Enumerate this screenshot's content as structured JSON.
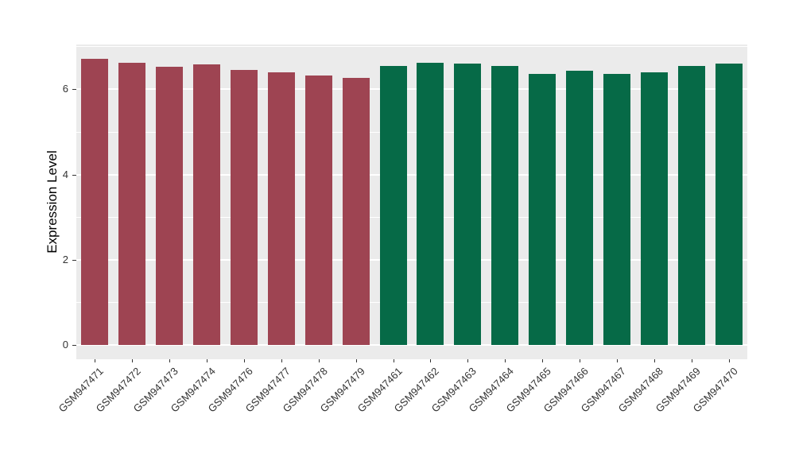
{
  "chart_data": {
    "type": "bar",
    "title": "",
    "ylabel": "Expression Level",
    "xlabel": "",
    "y_ticks": [
      0,
      2,
      4,
      6
    ],
    "ylim": [
      0,
      7.05
    ],
    "grid": "on",
    "legend": "none",
    "panel_background": "#EBEBEB",
    "gridline_color": "#FFFFFF",
    "tick_mark_color": "#333333",
    "tick_label_color": "#333333",
    "axis_title_color": "#000000",
    "group_colors": {
      "maroon": "#9E4452",
      "green": "#066A47"
    },
    "categories": [
      "GSM947471",
      "GSM947472",
      "GSM947473",
      "GSM947474",
      "GSM947476",
      "GSM947477",
      "GSM947478",
      "GSM947479",
      "GSM947461",
      "GSM947462",
      "GSM947463",
      "GSM947464",
      "GSM947465",
      "GSM947466",
      "GSM947467",
      "GSM947468",
      "GSM947469",
      "GSM947470"
    ],
    "bars": [
      {
        "label": "GSM947471",
        "value": 6.71,
        "group": "maroon"
      },
      {
        "label": "GSM947472",
        "value": 6.62,
        "group": "maroon"
      },
      {
        "label": "GSM947473",
        "value": 6.53,
        "group": "maroon"
      },
      {
        "label": "GSM947474",
        "value": 6.59,
        "group": "maroon"
      },
      {
        "label": "GSM947476",
        "value": 6.46,
        "group": "maroon"
      },
      {
        "label": "GSM947477",
        "value": 6.4,
        "group": "maroon"
      },
      {
        "label": "GSM947478",
        "value": 6.32,
        "group": "maroon"
      },
      {
        "label": "GSM947479",
        "value": 6.26,
        "group": "maroon"
      },
      {
        "label": "GSM947461",
        "value": 6.55,
        "group": "green"
      },
      {
        "label": "GSM947462",
        "value": 6.62,
        "group": "green"
      },
      {
        "label": "GSM947463",
        "value": 6.61,
        "group": "green"
      },
      {
        "label": "GSM947464",
        "value": 6.54,
        "group": "green"
      },
      {
        "label": "GSM947465",
        "value": 6.37,
        "group": "green"
      },
      {
        "label": "GSM947466",
        "value": 6.44,
        "group": "green"
      },
      {
        "label": "GSM947467",
        "value": 6.37,
        "group": "green"
      },
      {
        "label": "GSM947468",
        "value": 6.4,
        "group": "green"
      },
      {
        "label": "GSM947469",
        "value": 6.54,
        "group": "green"
      },
      {
        "label": "GSM947470",
        "value": 6.6,
        "group": "green"
      }
    ]
  }
}
